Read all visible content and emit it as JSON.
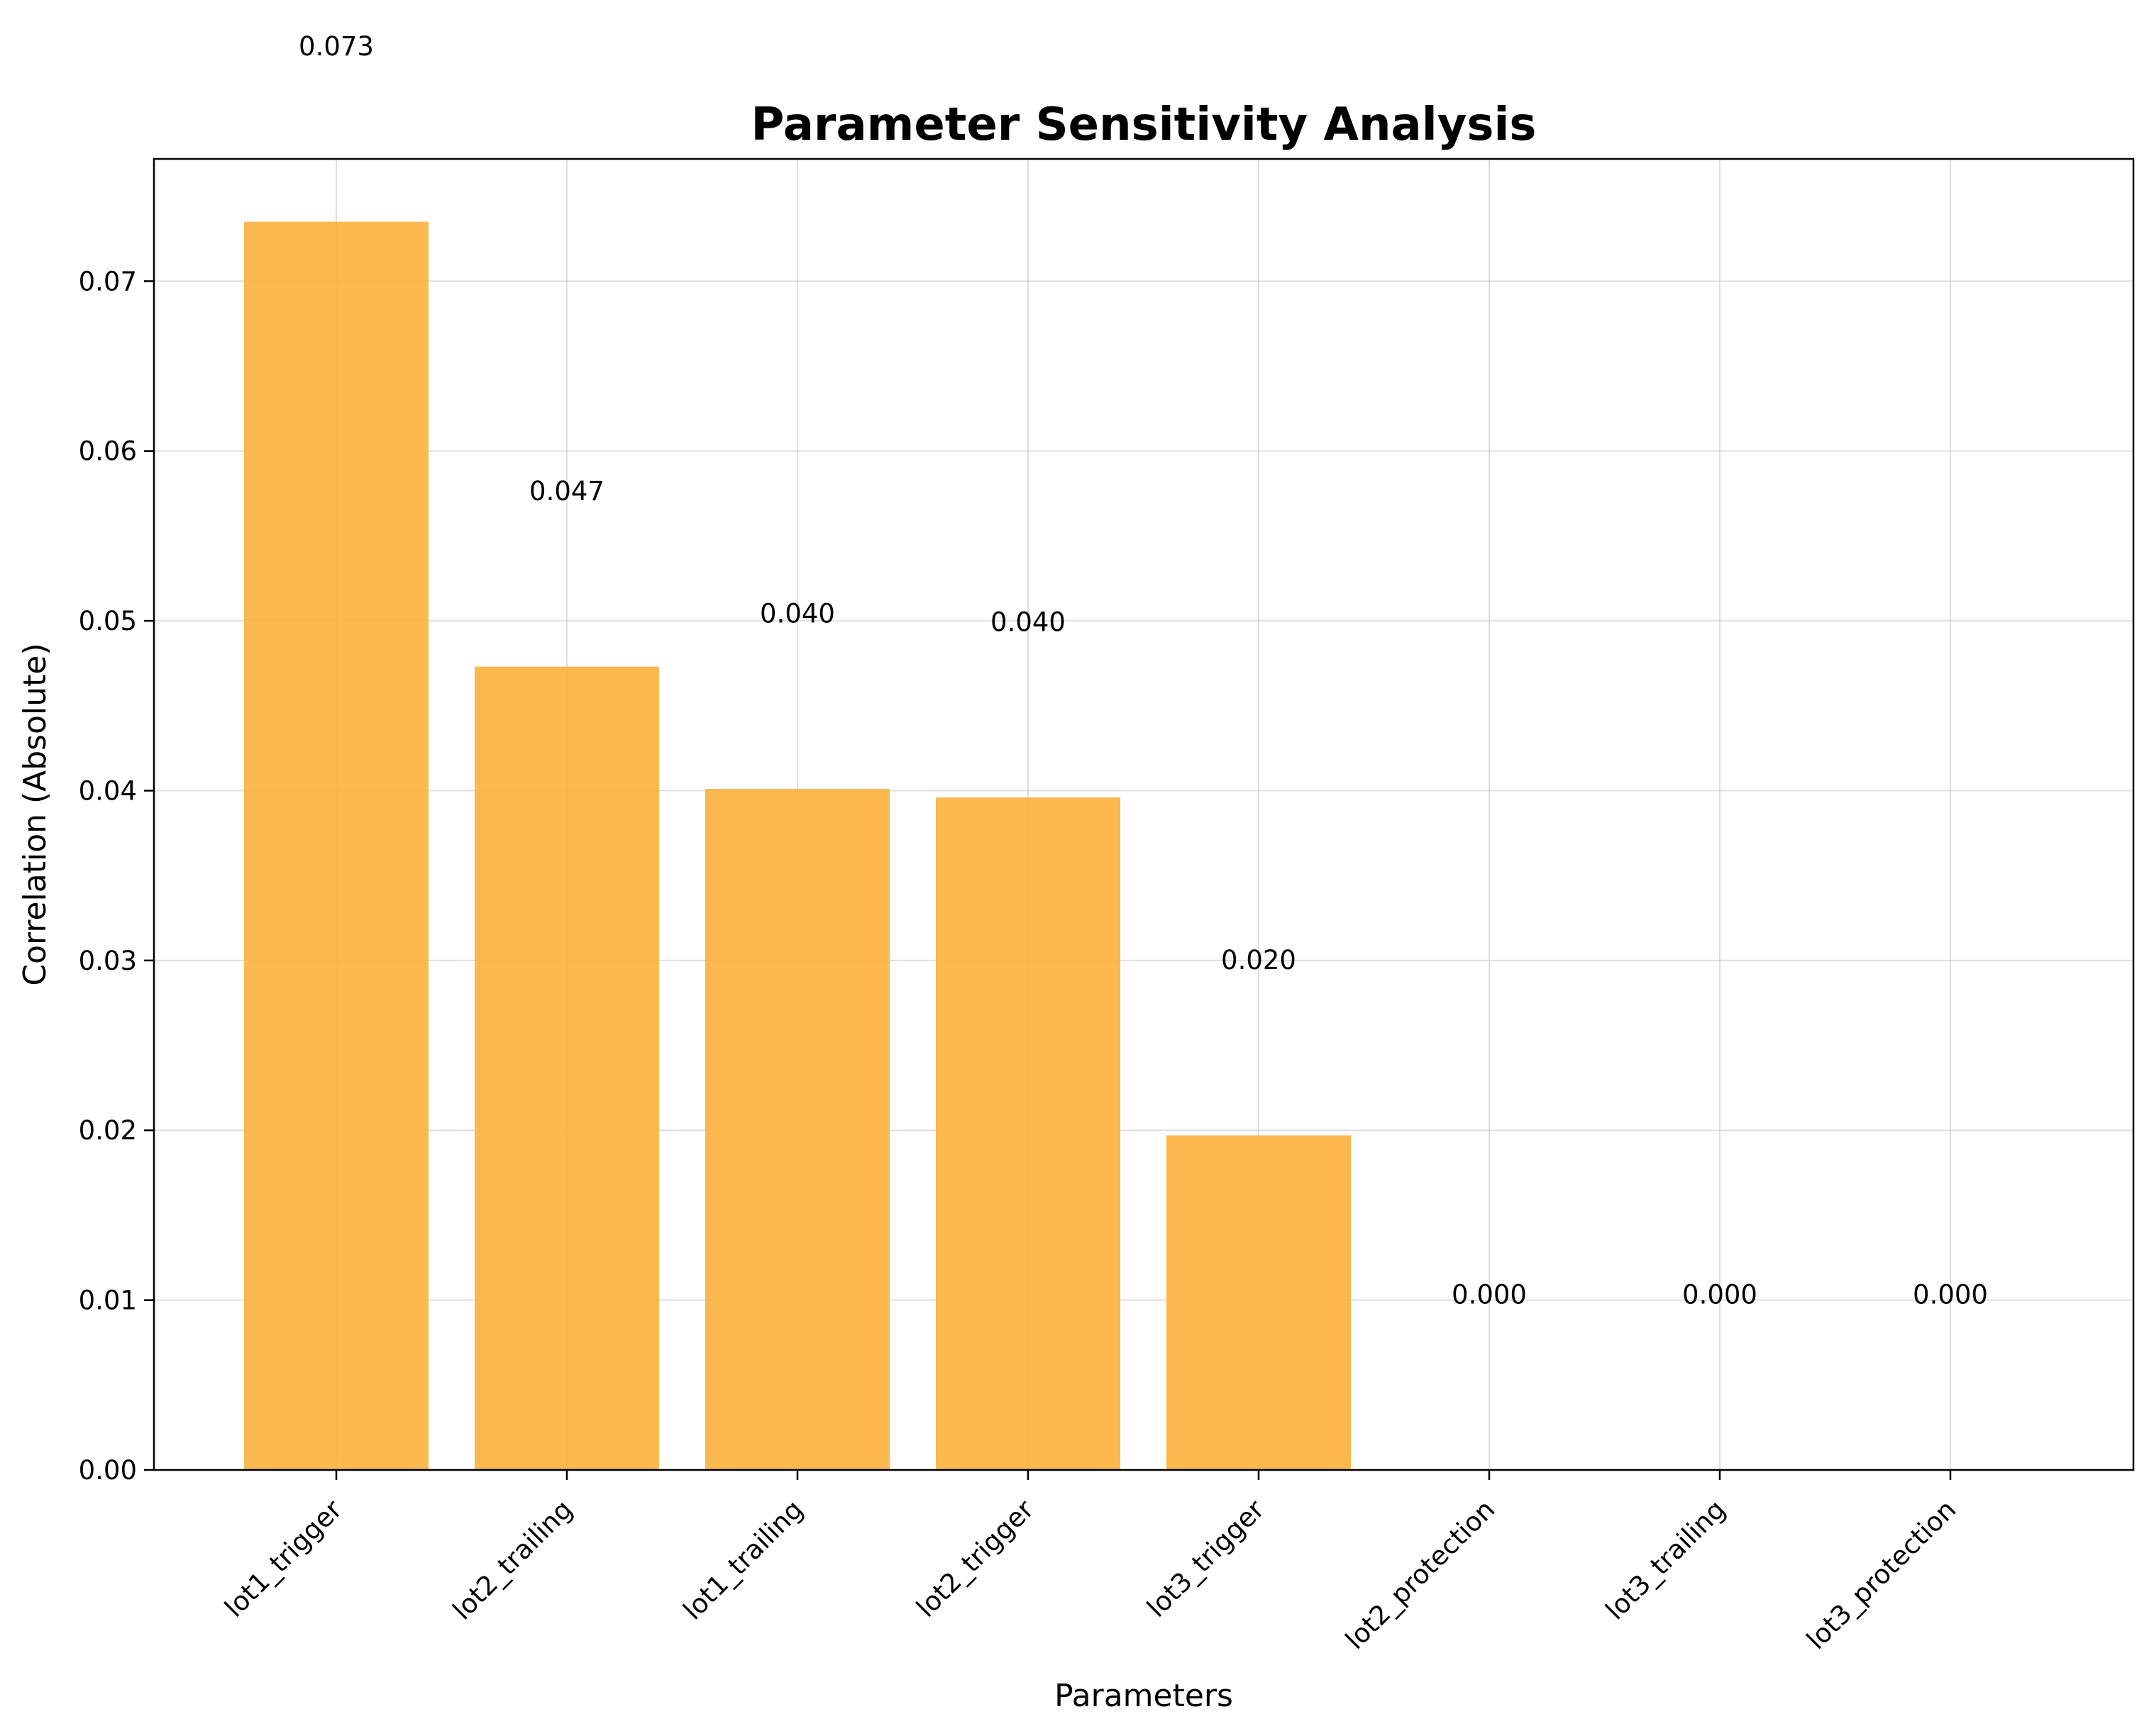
{
  "chart_data": {
    "type": "bar",
    "title": "Parameter Sensitivity Analysis",
    "xlabel": "Parameters",
    "ylabel": "Correlation (Absolute)",
    "categories": [
      "lot1_trigger",
      "lot2_trailing",
      "lot1_trailing",
      "lot2_trigger",
      "lot3_trigger",
      "lot2_protection",
      "lot3_trailing",
      "lot3_protection"
    ],
    "values": [
      0.0735,
      0.0473,
      0.0401,
      0.0396,
      0.0197,
      0.0,
      0.0,
      0.0
    ],
    "data_labels": [
      "0.073",
      "0.047",
      "0.040",
      "0.040",
      "0.020",
      "0.000",
      "0.000",
      "0.000"
    ],
    "y_ticks": [
      "0.00",
      "0.01",
      "0.02",
      "0.03",
      "0.04",
      "0.05",
      "0.06",
      "0.07"
    ],
    "ylim": [
      0,
      0.0772
    ],
    "grid": true,
    "bar_color": "#fbb13c"
  }
}
